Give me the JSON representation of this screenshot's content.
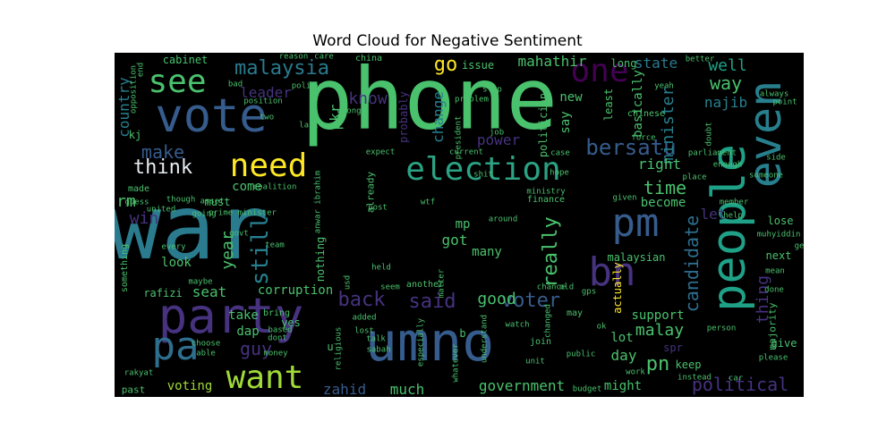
{
  "title": "Word Cloud for Negative Sentiment",
  "colors": {
    "background": "#000000",
    "palette": [
      "#440154",
      "#46327e",
      "#365c8d",
      "#277f8e",
      "#1fa187",
      "#4ac16d",
      "#a0da39",
      "#fde725"
    ]
  },
  "words": [
    {
      "text": "anwar",
      "size": 100,
      "color": "#2a7b8e",
      "rot": 0
    },
    {
      "text": "phone",
      "size": 95,
      "color": "#4ac16d",
      "rot": 0
    },
    {
      "text": "people",
      "size": 52,
      "color": "#1fa187",
      "rot": -90
    },
    {
      "text": "umno",
      "size": 60,
      "color": "#365c8d",
      "rot": 0
    },
    {
      "text": "party",
      "size": 54,
      "color": "#46327e",
      "rot": 0
    },
    {
      "text": "vote",
      "size": 52,
      "color": "#365c8d",
      "rot": 0
    },
    {
      "text": "even",
      "size": 50,
      "color": "#277f8e",
      "rot": -90
    },
    {
      "text": "election",
      "size": 36,
      "color": "#2ba283",
      "rot": 0
    },
    {
      "text": "need",
      "size": 36,
      "color": "#fde725",
      "rot": 0
    },
    {
      "text": "want",
      "size": 36,
      "color": "#a0da39",
      "rot": 0
    },
    {
      "text": "pa",
      "size": 44,
      "color": "#2e6e8e",
      "rot": 0
    },
    {
      "text": "bn",
      "size": 44,
      "color": "#46327e",
      "rot": 0
    },
    {
      "text": "pm",
      "size": 44,
      "color": "#365c8d",
      "rot": 0
    },
    {
      "text": "see",
      "size": 36,
      "color": "#4ac16d",
      "rot": 0
    },
    {
      "text": "one",
      "size": 36,
      "color": "#440154",
      "rot": 0
    },
    {
      "text": "malaysia",
      "size": 22,
      "color": "#2a7b8e",
      "rot": 0
    },
    {
      "text": "bersatu",
      "size": 24,
      "color": "#365c8d",
      "rot": 0
    },
    {
      "text": "think",
      "size": 22,
      "color": "#e6ecf0",
      "rot": 0
    },
    {
      "text": "make",
      "size": 20,
      "color": "#365c8d",
      "rot": 0
    },
    {
      "text": "country",
      "size": 16,
      "color": "#277f8e",
      "rot": -90
    },
    {
      "text": "mahathir",
      "size": 16,
      "color": "#4ac16d",
      "rot": 0
    },
    {
      "text": "state",
      "size": 16,
      "color": "#2a7b8e",
      "rot": 0
    },
    {
      "text": "well",
      "size": 18,
      "color": "#1fa187",
      "rot": 0
    },
    {
      "text": "way",
      "size": 20,
      "color": "#4ac16d",
      "rot": 0
    },
    {
      "text": "najib",
      "size": 16,
      "color": "#277f8e",
      "rot": 0
    },
    {
      "text": "minister",
      "size": 18,
      "color": "#277f8e",
      "rot": -90
    },
    {
      "text": "time",
      "size": 20,
      "color": "#4ac16d",
      "rot": 0
    },
    {
      "text": "right",
      "size": 16,
      "color": "#4ac16d",
      "rot": 0
    },
    {
      "text": "let",
      "size": 16,
      "color": "#46327e",
      "rot": 0
    },
    {
      "text": "candidate",
      "size": 20,
      "color": "#2e6e8e",
      "rot": -90
    },
    {
      "text": "thing",
      "size": 18,
      "color": "#46327e",
      "rot": -90
    },
    {
      "text": "pn",
      "size": 22,
      "color": "#4ac16d",
      "rot": 0
    },
    {
      "text": "malay",
      "size": 18,
      "color": "#4ac16d",
      "rot": 0
    },
    {
      "text": "political",
      "size": 20,
      "color": "#46327e",
      "rot": 0
    },
    {
      "text": "voter",
      "size": 22,
      "color": "#365c8d",
      "rot": 0
    },
    {
      "text": "said",
      "size": 22,
      "color": "#46327e",
      "rot": 0
    },
    {
      "text": "back",
      "size": 22,
      "color": "#46327e",
      "rot": 0
    },
    {
      "text": "still",
      "size": 26,
      "color": "#277f8e",
      "rot": -90
    },
    {
      "text": "really",
      "size": 22,
      "color": "#4ac16d",
      "rot": -90
    },
    {
      "text": "guy",
      "size": 20,
      "color": "#46327e",
      "rot": 0
    },
    {
      "text": "year",
      "size": 18,
      "color": "#4ac16d",
      "rot": -90
    },
    {
      "text": "win",
      "size": 18,
      "color": "#46327e",
      "rot": 0
    },
    {
      "text": "rm",
      "size": 18,
      "color": "#4ac16d",
      "rot": 0
    },
    {
      "text": "seat",
      "size": 16,
      "color": "#4ac16d",
      "rot": 0
    },
    {
      "text": "dap",
      "size": 14,
      "color": "#4ac16d",
      "rot": 0
    },
    {
      "text": "voting",
      "size": 14,
      "color": "#a0da39",
      "rot": 0
    },
    {
      "text": "zahid",
      "size": 16,
      "color": "#365c8d",
      "rot": 0
    },
    {
      "text": "much",
      "size": 16,
      "color": "#4ac16d",
      "rot": 0
    },
    {
      "text": "government",
      "size": 16,
      "color": "#4ac16d",
      "rot": 0
    },
    {
      "text": "might",
      "size": 14,
      "color": "#4ac16d",
      "rot": 0
    },
    {
      "text": "day",
      "size": 16,
      "color": "#4ac16d",
      "rot": 0
    },
    {
      "text": "keep",
      "size": 12,
      "color": "#4ac16d",
      "rot": 0
    },
    {
      "text": "spr",
      "size": 12,
      "color": "#46327e",
      "rot": 0
    },
    {
      "text": "give",
      "size": 12,
      "color": "#4ac16d",
      "rot": 0
    },
    {
      "text": "lot",
      "size": 14,
      "color": "#4ac16d",
      "rot": 0
    },
    {
      "text": "support",
      "size": 14,
      "color": "#4ac16d",
      "rot": 0
    },
    {
      "text": "good",
      "size": 18,
      "color": "#4ac16d",
      "rot": 0
    },
    {
      "text": "power",
      "size": 16,
      "color": "#46327e",
      "rot": 0
    },
    {
      "text": "got",
      "size": 16,
      "color": "#4ac16d",
      "rot": 0
    },
    {
      "text": "mp",
      "size": 14,
      "color": "#4ac16d",
      "rot": 0
    },
    {
      "text": "change",
      "size": 16,
      "color": "#277f8e",
      "rot": -90
    },
    {
      "text": "probably",
      "size": 12,
      "color": "#46327e",
      "rot": -90
    },
    {
      "text": "know",
      "size": 18,
      "color": "#46327e",
      "rot": 0
    },
    {
      "text": "go",
      "size": 22,
      "color": "#fde725",
      "rot": 0
    },
    {
      "text": "leader",
      "size": 16,
      "color": "#46327e",
      "rot": 0
    },
    {
      "text": "pkr",
      "size": 16,
      "color": "#4ac16d",
      "rot": -90
    },
    {
      "text": "must",
      "size": 12,
      "color": "#4ac16d",
      "rot": 0
    },
    {
      "text": "come",
      "size": 14,
      "color": "#4ac16d",
      "rot": 0
    },
    {
      "text": "look",
      "size": 14,
      "color": "#4ac16d",
      "rot": 0
    },
    {
      "text": "take",
      "size": 14,
      "color": "#4ac16d",
      "rot": 0
    },
    {
      "text": "yes",
      "size": 12,
      "color": "#4ac16d",
      "rot": 0
    },
    {
      "text": "corruption",
      "size": 14,
      "color": "#4ac16d",
      "rot": 0
    },
    {
      "text": "rafizi",
      "size": 12,
      "color": "#4ac16d",
      "rot": 0
    },
    {
      "text": "issue",
      "size": 12,
      "color": "#4ac16d",
      "rot": 0
    },
    {
      "text": "politician",
      "size": 12,
      "color": "#4ac16d",
      "rot": -90
    },
    {
      "text": "say",
      "size": 14,
      "color": "#4ac16d",
      "rot": -90
    },
    {
      "text": "new",
      "size": 14,
      "color": "#4ac16d",
      "rot": 0
    },
    {
      "text": "long",
      "size": 12,
      "color": "#4ac16d",
      "rot": 0
    },
    {
      "text": "least",
      "size": 12,
      "color": "#4ac16d",
      "rot": -90
    },
    {
      "text": "basically",
      "size": 14,
      "color": "#4ac16d",
      "rot": -90
    },
    {
      "text": "become",
      "size": 14,
      "color": "#4ac16d",
      "rot": 0
    },
    {
      "text": "malaysian",
      "size": 12,
      "color": "#4ac16d",
      "rot": 0
    },
    {
      "text": "actually",
      "size": 12,
      "color": "#fde725",
      "rot": -90
    },
    {
      "text": "many",
      "size": 14,
      "color": "#4ac16d",
      "rot": 0
    },
    {
      "text": "next",
      "size": 12,
      "color": "#4ac16d",
      "rot": 0
    },
    {
      "text": "lose",
      "size": 12,
      "color": "#4ac16d",
      "rot": 0
    },
    {
      "text": "majority",
      "size": 11,
      "color": "#4ac16d",
      "rot": -90
    },
    {
      "text": "muhyiddin",
      "size": 9,
      "color": "#4ac16d",
      "rot": 0
    },
    {
      "text": "cabinet",
      "size": 12,
      "color": "#4ac16d",
      "rot": 0
    },
    {
      "text": "kj",
      "size": 12,
      "color": "#4ac16d",
      "rot": 0
    },
    {
      "text": "made",
      "size": 10,
      "color": "#4ac16d",
      "rot": 0
    },
    {
      "text": "every",
      "size": 9,
      "color": "#4ac16d",
      "rot": 0
    },
    {
      "text": "something",
      "size": 10,
      "color": "#4ac16d",
      "rot": -90
    },
    {
      "text": "past",
      "size": 11,
      "color": "#4ac16d",
      "rot": 0
    },
    {
      "text": "chinese",
      "size": 10,
      "color": "#4ac16d",
      "rot": 0
    },
    {
      "text": "nothing",
      "size": 12,
      "color": "#4ac16d",
      "rot": -90
    },
    {
      "text": "anwar ibrahim",
      "size": 9,
      "color": "#4ac16d",
      "rot": -90
    },
    {
      "text": "already",
      "size": 11,
      "color": "#4ac16d",
      "rot": -90
    },
    {
      "text": "prime minister",
      "size": 9,
      "color": "#4ac16d",
      "rot": 0
    },
    {
      "text": "china",
      "size": 10,
      "color": "#4ac16d",
      "rot": 0
    },
    {
      "text": "policy",
      "size": 9,
      "color": "#4ac16d",
      "rot": 0
    },
    {
      "text": "seem",
      "size": 9,
      "color": "#4ac16d",
      "rot": 0
    },
    {
      "text": "another",
      "size": 10,
      "color": "#4ac16d",
      "rot": 0
    },
    {
      "text": "held",
      "size": 9,
      "color": "#4ac16d",
      "rot": 0
    },
    {
      "text": "finance",
      "size": 10,
      "color": "#4ac16d",
      "rot": 0
    },
    {
      "text": "chance",
      "size": 9,
      "color": "#4ac16d",
      "rot": 0
    },
    {
      "text": "old",
      "size": 9,
      "color": "#4ac16d",
      "rot": 0
    },
    {
      "text": "may",
      "size": 10,
      "color": "#4ac16d",
      "rot": 0
    },
    {
      "text": "bring",
      "size": 10,
      "color": "#4ac16d",
      "rot": 0
    },
    {
      "text": "based",
      "size": 9,
      "color": "#4ac16d",
      "rot": 0
    },
    {
      "text": "dont",
      "size": 9,
      "color": "#4ac16d",
      "rot": 0
    },
    {
      "text": "money",
      "size": 9,
      "color": "#4ac16d",
      "rot": 0
    },
    {
      "text": "choose",
      "size": 9,
      "color": "#4ac16d",
      "rot": 0
    },
    {
      "text": "able",
      "size": 9,
      "color": "#4ac16d",
      "rot": 0
    },
    {
      "text": "rakyat",
      "size": 9,
      "color": "#4ac16d",
      "rot": 0
    },
    {
      "text": "sabah",
      "size": 9,
      "color": "#4ac16d",
      "rot": 0
    },
    {
      "text": "talk",
      "size": 9,
      "color": "#4ac16d",
      "rot": 0
    },
    {
      "text": "lost",
      "size": 9,
      "color": "#4ac16d",
      "rot": 0
    },
    {
      "text": "added",
      "size": 9,
      "color": "#4ac16d",
      "rot": 0
    },
    {
      "text": "religious",
      "size": 9,
      "color": "#4ac16d",
      "rot": -90
    },
    {
      "text": "especially",
      "size": 9,
      "color": "#4ac16d",
      "rot": -90
    },
    {
      "text": "whatever",
      "size": 9,
      "color": "#4ac16d",
      "rot": -90
    },
    {
      "text": "understand",
      "size": 9,
      "color": "#4ac16d",
      "rot": -90
    },
    {
      "text": "join",
      "size": 10,
      "color": "#4ac16d",
      "rot": 0
    },
    {
      "text": "unit",
      "size": 9,
      "color": "#4ac16d",
      "rot": 0
    },
    {
      "text": "budget",
      "size": 9,
      "color": "#4ac16d",
      "rot": 0
    },
    {
      "text": "public",
      "size": 9,
      "color": "#4ac16d",
      "rot": 0
    },
    {
      "text": "work",
      "size": 9,
      "color": "#4ac16d",
      "rot": 0
    },
    {
      "text": "instead",
      "size": 9,
      "color": "#4ac16d",
      "rot": 0
    },
    {
      "text": "car",
      "size": 9,
      "color": "#4ac16d",
      "rot": 0
    },
    {
      "text": "please",
      "size": 9,
      "color": "#4ac16d",
      "rot": 0
    },
    {
      "text": "person",
      "size": 9,
      "color": "#4ac16d",
      "rot": 0
    },
    {
      "text": "done",
      "size": 9,
      "color": "#4ac16d",
      "rot": 0
    },
    {
      "text": "mean",
      "size": 9,
      "color": "#4ac16d",
      "rot": 0
    },
    {
      "text": "ge",
      "size": 9,
      "color": "#4ac16d",
      "rot": 0
    },
    {
      "text": "member",
      "size": 9,
      "color": "#4ac16d",
      "rot": 0
    },
    {
      "text": "help",
      "size": 9,
      "color": "#4ac16d",
      "rot": 0
    },
    {
      "text": "someone",
      "size": 9,
      "color": "#4ac16d",
      "rot": 0
    },
    {
      "text": "enough",
      "size": 9,
      "color": "#4ac16d",
      "rot": 0
    },
    {
      "text": "parliament",
      "size": 9,
      "color": "#4ac16d",
      "rot": 0
    },
    {
      "text": "side",
      "size": 9,
      "color": "#4ac16d",
      "rot": 0
    },
    {
      "text": "always",
      "size": 9,
      "color": "#4ac16d",
      "rot": 0
    },
    {
      "text": "point",
      "size": 9,
      "color": "#4ac16d",
      "rot": 0
    },
    {
      "text": "better",
      "size": 9,
      "color": "#4ac16d",
      "rot": 0
    },
    {
      "text": "yeah",
      "size": 9,
      "color": "#4ac16d",
      "rot": 0
    },
    {
      "text": "doubt",
      "size": 9,
      "color": "#4ac16d",
      "rot": -90
    },
    {
      "text": "place",
      "size": 9,
      "color": "#4ac16d",
      "rot": 0
    },
    {
      "text": "given",
      "size": 9,
      "color": "#4ac16d",
      "rot": 0
    },
    {
      "text": "ministry",
      "size": 9,
      "color": "#4ac16d",
      "rot": 0
    },
    {
      "text": "hope",
      "size": 9,
      "color": "#4ac16d",
      "rot": 0
    },
    {
      "text": "force",
      "size": 9,
      "color": "#4ac16d",
      "rot": 0
    },
    {
      "text": "case",
      "size": 9,
      "color": "#4ac16d",
      "rot": 0
    },
    {
      "text": "expect",
      "size": 9,
      "color": "#4ac16d",
      "rot": 0
    },
    {
      "text": "shit",
      "size": 9,
      "color": "#4ac16d",
      "rot": 0
    },
    {
      "text": "post",
      "size": 9,
      "color": "#4ac16d",
      "rot": 0
    },
    {
      "text": "around",
      "size": 9,
      "color": "#4ac16d",
      "rot": 0
    },
    {
      "text": "matter",
      "size": 9,
      "color": "#4ac16d",
      "rot": -90
    },
    {
      "text": "usd",
      "size": 9,
      "color": "#4ac16d",
      "rot": -90
    },
    {
      "text": "wtf",
      "size": 9,
      "color": "#4ac16d",
      "rot": 0
    },
    {
      "text": "current",
      "size": 9,
      "color": "#4ac16d",
      "rot": 0
    },
    {
      "text": "job",
      "size": 9,
      "color": "#4ac16d",
      "rot": 0
    },
    {
      "text": "president",
      "size": 9,
      "color": "#4ac16d",
      "rot": -90
    },
    {
      "text": "stop",
      "size": 9,
      "color": "#4ac16d",
      "rot": 0
    },
    {
      "text": "wrong",
      "size": 9,
      "color": "#4ac16d",
      "rot": 0
    },
    {
      "text": "problem",
      "size": 9,
      "color": "#4ac16d",
      "rot": 0
    },
    {
      "text": "reason",
      "size": 9,
      "color": "#4ac16d",
      "rot": 0
    },
    {
      "text": "care",
      "size": 9,
      "color": "#4ac16d",
      "rot": 0
    },
    {
      "text": "position",
      "size": 9,
      "color": "#4ac16d",
      "rot": 0
    },
    {
      "text": "bad",
      "size": 9,
      "color": "#4ac16d",
      "rot": 0
    },
    {
      "text": "two",
      "size": 9,
      "color": "#4ac16d",
      "rot": 0
    },
    {
      "text": "last",
      "size": 9,
      "color": "#4ac16d",
      "rot": 0
    },
    {
      "text": "opposition",
      "size": 9,
      "color": "#4ac16d",
      "rot": -90
    },
    {
      "text": "end",
      "size": 9,
      "color": "#4ac16d",
      "rot": -90
    },
    {
      "text": "though",
      "size": 9,
      "color": "#4ac16d",
      "rot": 0
    },
    {
      "text": "going",
      "size": 9,
      "color": "#4ac16d",
      "rot": 0
    },
    {
      "text": "coalition",
      "size": 9,
      "color": "#4ac16d",
      "rot": 0
    },
    {
      "text": "asset",
      "size": 9,
      "color": "#4ac16d",
      "rot": 0
    },
    {
      "text": "govt",
      "size": 9,
      "color": "#4ac16d",
      "rot": 0
    },
    {
      "text": "united",
      "size": 9,
      "color": "#4ac16d",
      "rot": 0
    },
    {
      "text": "team",
      "size": 9,
      "color": "#4ac16d",
      "rot": 0
    },
    {
      "text": "guess",
      "size": 9,
      "color": "#4ac16d",
      "rot": 0
    },
    {
      "text": "maybe",
      "size": 9,
      "color": "#4ac16d",
      "rot": 0
    },
    {
      "text": "watch",
      "size": 9,
      "color": "#4ac16d",
      "rot": 0
    },
    {
      "text": "changed",
      "size": 9,
      "color": "#4ac16d",
      "rot": -90
    },
    {
      "text": "gps",
      "size": 9,
      "color": "#4ac16d",
      "rot": 0
    },
    {
      "text": "ok",
      "size": 9,
      "color": "#4ac16d",
      "rot": 0
    },
    {
      "text": "u",
      "size": 12,
      "color": "#4ac16d",
      "rot": 0
    },
    {
      "text": "b",
      "size": 12,
      "color": "#4ac16d",
      "rot": 0
    }
  ]
}
